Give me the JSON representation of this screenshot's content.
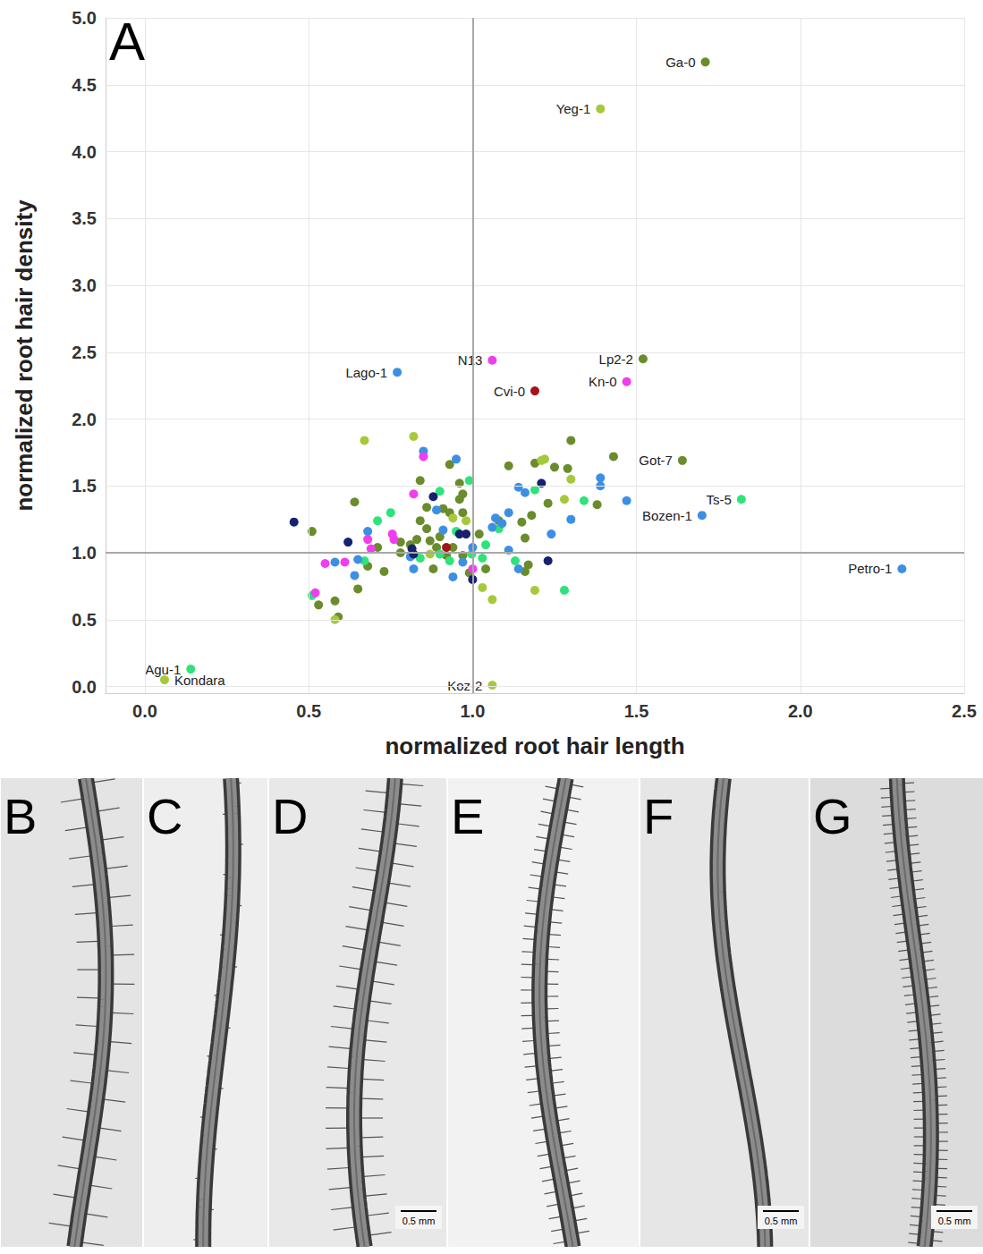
{
  "chart_data": {
    "type": "scatter",
    "panel_label": "A",
    "x_label": "normalized root hair length",
    "y_label": "normalized root hair density",
    "xlim": [
      -0.12,
      2.5
    ],
    "ylim": [
      -0.05,
      5.0
    ],
    "xticks": [
      {
        "value": 0,
        "label": "0.0"
      },
      {
        "value": 0.5,
        "label": "0.5"
      },
      {
        "value": 1,
        "label": "1.0"
      },
      {
        "value": 1.5,
        "label": "1.5"
      },
      {
        "value": 2,
        "label": "2.0"
      },
      {
        "value": 2.5,
        "label": "2.5"
      }
    ],
    "yticks": [
      {
        "value": 0,
        "label": "0.0"
      },
      {
        "value": 0.5,
        "label": "0.5"
      },
      {
        "value": 1,
        "label": "1.0"
      },
      {
        "value": 1.5,
        "label": "1.5"
      },
      {
        "value": 2,
        "label": "2.0"
      },
      {
        "value": 2.5,
        "label": "2.5"
      },
      {
        "value": 3,
        "label": "3.0"
      },
      {
        "value": 3.5,
        "label": "3.5"
      },
      {
        "value": 4,
        "label": "4.0"
      },
      {
        "value": 4.5,
        "label": "4.5"
      },
      {
        "value": 5,
        "label": "5.0"
      }
    ],
    "grid": true,
    "reference_lines": {
      "x": 1.0,
      "y": 1.0
    },
    "series": [
      {
        "color": "#6a8c2c",
        "x": [
          1.71,
          1.52,
          1.64,
          0.51,
          0.53,
          0.58,
          0.59,
          0.64,
          0.65,
          0.68,
          0.71,
          0.73,
          0.78,
          0.78,
          0.81,
          0.83,
          0.84,
          0.84,
          0.86,
          0.86,
          0.87,
          0.88,
          0.89,
          0.9,
          0.91,
          0.92,
          0.93,
          0.93,
          0.94,
          0.96,
          0.96,
          0.97,
          0.97,
          0.97,
          0.99,
          1.02,
          1.04,
          1.08,
          1.11,
          1.15,
          1.16,
          1.16,
          1.18,
          1.19,
          1.23,
          1.25,
          1.29,
          1.3,
          1.38,
          1.43,
          1.17
        ],
        "values": [
          4.67,
          2.45,
          1.69,
          1.16,
          0.61,
          0.64,
          0.52,
          1.38,
          0.73,
          0.9,
          1.04,
          0.86,
          1.0,
          1.08,
          1.06,
          1.1,
          1.24,
          1.54,
          1.34,
          1.18,
          1.09,
          0.88,
          1.04,
          1.12,
          1.33,
          0.98,
          1.3,
          1.66,
          1.04,
          1.4,
          1.52,
          1.44,
          1.3,
          0.98,
          0.85,
          1.14,
          0.88,
          1.24,
          1.65,
          1.23,
          1.11,
          0.86,
          1.28,
          1.67,
          1.37,
          1.64,
          1.63,
          1.84,
          1.36,
          1.72,
          0.91
        ],
        "labels": [
          "Ga-0",
          "Lp2-2",
          "Got-7",
          null,
          null,
          null,
          null,
          null,
          null,
          null,
          null,
          null,
          null,
          null,
          null,
          null,
          null,
          null,
          null,
          null,
          null,
          null,
          null,
          null,
          null,
          null,
          null,
          null,
          null,
          null,
          null,
          null,
          null,
          null,
          null,
          null,
          null,
          null,
          null,
          null,
          null,
          null,
          null,
          null,
          null,
          null,
          null,
          null,
          null,
          null,
          null
        ]
      },
      {
        "color": "#a6c93c",
        "x": [
          1.39,
          0.06,
          1.06,
          0.58,
          0.67,
          0.82,
          0.87,
          0.94,
          0.98,
          1.03,
          1.06,
          1.21,
          1.19,
          1.28,
          1.3,
          1.22
        ],
        "values": [
          4.32,
          0.05,
          0.01,
          0.5,
          1.84,
          1.87,
          0.99,
          1.26,
          1.24,
          0.74,
          0.65,
          1.69,
          0.72,
          1.4,
          1.55,
          1.7
        ],
        "labels": [
          "Yeg-1",
          "Kondara",
          "Koz-2",
          null,
          null,
          null,
          null,
          null,
          null,
          null,
          null,
          null,
          null,
          null,
          null,
          null
        ]
      },
      {
        "color": "#2fe37a",
        "x": [
          1.82,
          0.14,
          0.51,
          0.67,
          0.71,
          0.75,
          0.84,
          0.9,
          0.9,
          0.93,
          0.95,
          0.99,
          1.03,
          1.04,
          1.08,
          1.13,
          1.19,
          1.28,
          1.34,
          0.997
        ],
        "values": [
          1.4,
          0.13,
          0.68,
          0.94,
          1.24,
          1.3,
          0.96,
          1.46,
          0.99,
          0.94,
          1.16,
          1.54,
          0.96,
          1.06,
          1.18,
          0.94,
          1.47,
          0.72,
          1.39,
          0.99
        ],
        "labels": [
          "Ts-5",
          "Agu-1",
          null,
          null,
          null,
          null,
          null,
          null,
          null,
          null,
          null,
          null,
          null,
          null,
          null,
          null,
          null,
          null,
          null,
          null
        ]
      },
      {
        "color": "#3d8fe3",
        "x": [
          0.77,
          1.7,
          2.31,
          0.58,
          0.64,
          0.65,
          0.68,
          0.81,
          0.82,
          0.85,
          0.89,
          0.91,
          0.95,
          0.97,
          1.0,
          1.06,
          1.07,
          1.09,
          1.11,
          1.14,
          1.16,
          1.11,
          1.14,
          1.24,
          1.3,
          1.39,
          1.39,
          1.47,
          0.94
        ],
        "values": [
          2.35,
          1.28,
          0.88,
          0.93,
          0.83,
          0.95,
          1.16,
          0.97,
          0.88,
          1.76,
          1.32,
          1.17,
          1.7,
          0.93,
          1.04,
          1.19,
          1.26,
          1.22,
          1.3,
          1.49,
          1.45,
          1.02,
          0.88,
          1.14,
          1.25,
          1.56,
          1.5,
          1.39,
          0.82
        ],
        "labels": [
          "Lago-1",
          "Bozen-1",
          "Petro-1",
          null,
          null,
          null,
          null,
          null,
          null,
          null,
          null,
          null,
          null,
          null,
          null,
          null,
          null,
          null,
          null,
          null,
          null,
          null,
          null,
          null,
          null,
          null,
          null,
          null,
          null
        ]
      },
      {
        "color": "#17226e",
        "x": [
          0.455,
          0.62,
          0.815,
          0.88,
          0.98,
          1.21,
          1.23,
          1.0,
          0.82,
          0.96
        ],
        "values": [
          1.23,
          1.08,
          1.03,
          1.42,
          1.14,
          1.52,
          0.94,
          0.8,
          0.99,
          1.14
        ],
        "labels": [
          null,
          null,
          null,
          null,
          null,
          null,
          null,
          null,
          null,
          null
        ]
      },
      {
        "color": "#f13cf0",
        "x": [
          1.06,
          1.47,
          0.52,
          0.55,
          0.61,
          0.68,
          0.69,
          0.755,
          0.76,
          0.82,
          0.85,
          1.0
        ],
        "values": [
          2.44,
          2.28,
          0.7,
          0.92,
          0.93,
          1.1,
          1.03,
          1.14,
          1.1,
          1.44,
          1.72,
          0.88
        ],
        "labels": [
          "N13",
          "Kn-0",
          null,
          null,
          null,
          null,
          null,
          null,
          null,
          null,
          null,
          null
        ]
      },
      {
        "color": "#a3141a",
        "x": [
          1.19,
          0.92
        ],
        "values": [
          2.21,
          1.04
        ],
        "labels": [
          "Cvi-0",
          null
        ]
      }
    ]
  },
  "image_panels": [
    {
      "letter": "B",
      "scale_bar": null
    },
    {
      "letter": "C",
      "scale_bar": null
    },
    {
      "letter": "D",
      "scale_bar": "0.5 mm"
    },
    {
      "letter": "E",
      "scale_bar": null
    },
    {
      "letter": "F",
      "scale_bar": "0.5 mm"
    },
    {
      "letter": "G",
      "scale_bar": "0.5 mm"
    }
  ]
}
